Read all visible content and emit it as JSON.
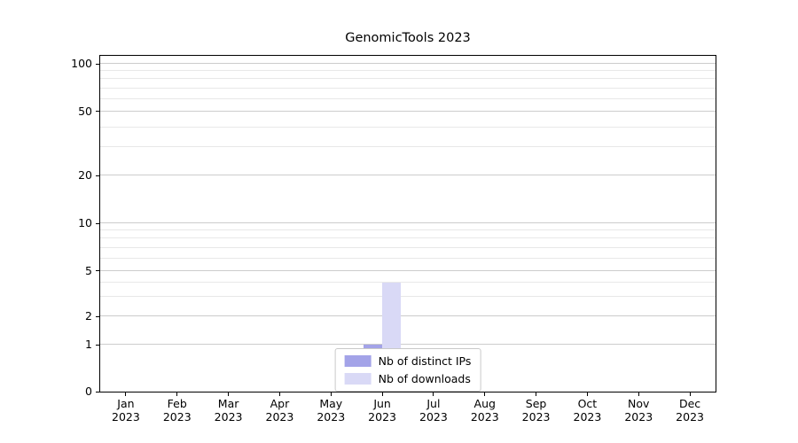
{
  "chart_data": {
    "type": "bar",
    "title": "GenomicTools 2023",
    "categories": [
      "Jan 2023",
      "Feb 2023",
      "Mar 2023",
      "Apr 2023",
      "May 2023",
      "Jun 2023",
      "Jul 2023",
      "Aug 2023",
      "Sep 2023",
      "Oct 2023",
      "Nov 2023",
      "Dec 2023"
    ],
    "series": [
      {
        "name": "Nb of distinct IPs",
        "color": "#a3a3e8",
        "values": [
          0,
          0,
          0,
          0,
          0,
          1,
          0,
          0,
          0,
          0,
          0,
          0
        ]
      },
      {
        "name": "Nb of downloads",
        "color": "#d9d9f6",
        "values": [
          0,
          0,
          0,
          0,
          0,
          4,
          0,
          0,
          0,
          0,
          0,
          0
        ]
      }
    ],
    "yscale": "symlog",
    "ylim": [
      0,
      105
    ],
    "yticks": [
      0,
      1,
      2,
      5,
      10,
      20,
      50,
      100
    ],
    "minor_yticks": [
      3,
      4,
      6,
      7,
      8,
      9,
      30,
      40,
      60,
      70,
      80,
      90
    ],
    "grid": true,
    "legend_position": "lower center"
  }
}
